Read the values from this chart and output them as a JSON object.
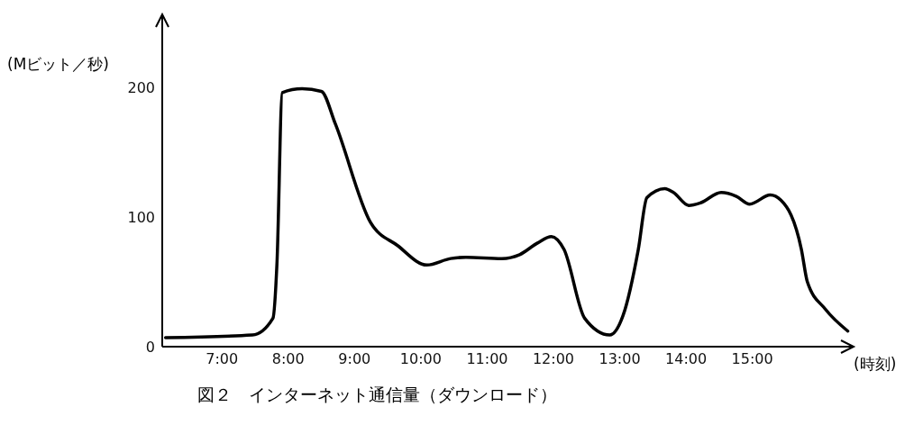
{
  "chart_data": {
    "type": "line",
    "title": "図２　インターネット通信量（ダウンロード）",
    "ylabel": "(Mビット／秒)",
    "xlabel": "(時刻)",
    "x": [
      6.15,
      7.46,
      7.77,
      7.83,
      7.91,
      8.21,
      8.5,
      8.71,
      9.24,
      9.65,
      10.09,
      10.45,
      10.68,
      11.22,
      11.49,
      11.76,
      11.97,
      12.16,
      12.47,
      12.85,
      13.05,
      13.28,
      13.41,
      13.68,
      13.81,
      14.04,
      14.22,
      14.53,
      14.76,
      14.96,
      15.27,
      15.43,
      15.74,
      15.83,
      16.1,
      16.44
    ],
    "series": [
      {
        "color": "#000000",
        "values": [
          7,
          9,
          22,
          64,
          196,
          199,
          197,
          172,
          96,
          78,
          63,
          68,
          69,
          68,
          71,
          80,
          85,
          75,
          22,
          9,
          24,
          75,
          115,
          122,
          119,
          109,
          111,
          119,
          116,
          110,
          117,
          113,
          75,
          50,
          29,
          12
        ]
      }
    ],
    "xlim": [
      6.1,
      16.5
    ],
    "ylim": [
      0,
      255
    ],
    "xticks": [
      {
        "value": 7,
        "label": "7:00"
      },
      {
        "value": 8,
        "label": "8:00"
      },
      {
        "value": 9,
        "label": "9:00"
      },
      {
        "value": 10,
        "label": "10:00"
      },
      {
        "value": 11,
        "label": "11:00"
      },
      {
        "value": 12,
        "label": "12:00"
      },
      {
        "value": 13,
        "label": "13:00"
      },
      {
        "value": 14,
        "label": "14:00"
      },
      {
        "value": 15,
        "label": "15:00"
      }
    ],
    "yticks": [
      0,
      100,
      200
    ],
    "grid": false,
    "legend": false,
    "marker": "none",
    "line_style": "solid"
  }
}
